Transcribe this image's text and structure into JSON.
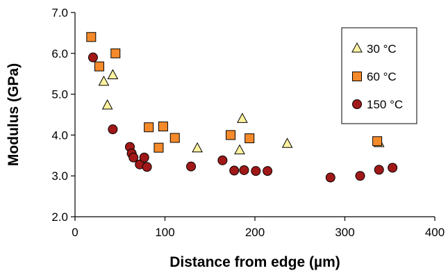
{
  "chart_data": {
    "type": "scatter",
    "title": "",
    "xlabel": "Distance from edge (µm)",
    "ylabel": "Modulus (GPa)",
    "xlim": [
      0,
      400
    ],
    "ylim": [
      2.0,
      7.0
    ],
    "xticks": [
      0,
      100,
      200,
      300,
      400
    ],
    "xtick_labels": [
      "0",
      "100",
      "200",
      "300",
      "400"
    ],
    "yticks": [
      2.0,
      3.0,
      4.0,
      5.0,
      6.0,
      7.0
    ],
    "ytick_labels": [
      "2.0",
      "3.0",
      "4.0",
      "5.0",
      "6.0",
      "7.0"
    ],
    "grid": false,
    "legend_position": "top-right",
    "series": [
      {
        "name": "30 °C",
        "marker": "triangle",
        "color": "#FFF2A0",
        "x": [
          32,
          36,
          42,
          136,
          183,
          186,
          236,
          338
        ],
        "y": [
          5.3,
          4.72,
          5.46,
          3.67,
          3.62,
          4.39,
          3.78,
          3.8
        ]
      },
      {
        "name": "60 °C",
        "marker": "square",
        "color": "#F58A2A",
        "x": [
          18,
          27,
          45,
          82,
          93,
          98,
          111,
          173,
          194,
          336
        ],
        "y": [
          6.4,
          5.68,
          6.0,
          4.19,
          3.69,
          4.21,
          3.93,
          4.0,
          3.92,
          3.85
        ]
      },
      {
        "name": "150 °C",
        "marker": "circle",
        "color": "#A01818",
        "x": [
          20,
          42,
          61,
          63,
          65,
          72,
          77,
          80,
          129,
          164,
          177,
          188,
          201,
          214,
          284,
          317,
          338,
          353
        ],
        "y": [
          5.9,
          4.14,
          3.71,
          3.55,
          3.45,
          3.28,
          3.45,
          3.22,
          3.23,
          3.38,
          3.13,
          3.14,
          3.12,
          3.12,
          2.96,
          3.0,
          3.15,
          3.2
        ]
      }
    ]
  }
}
